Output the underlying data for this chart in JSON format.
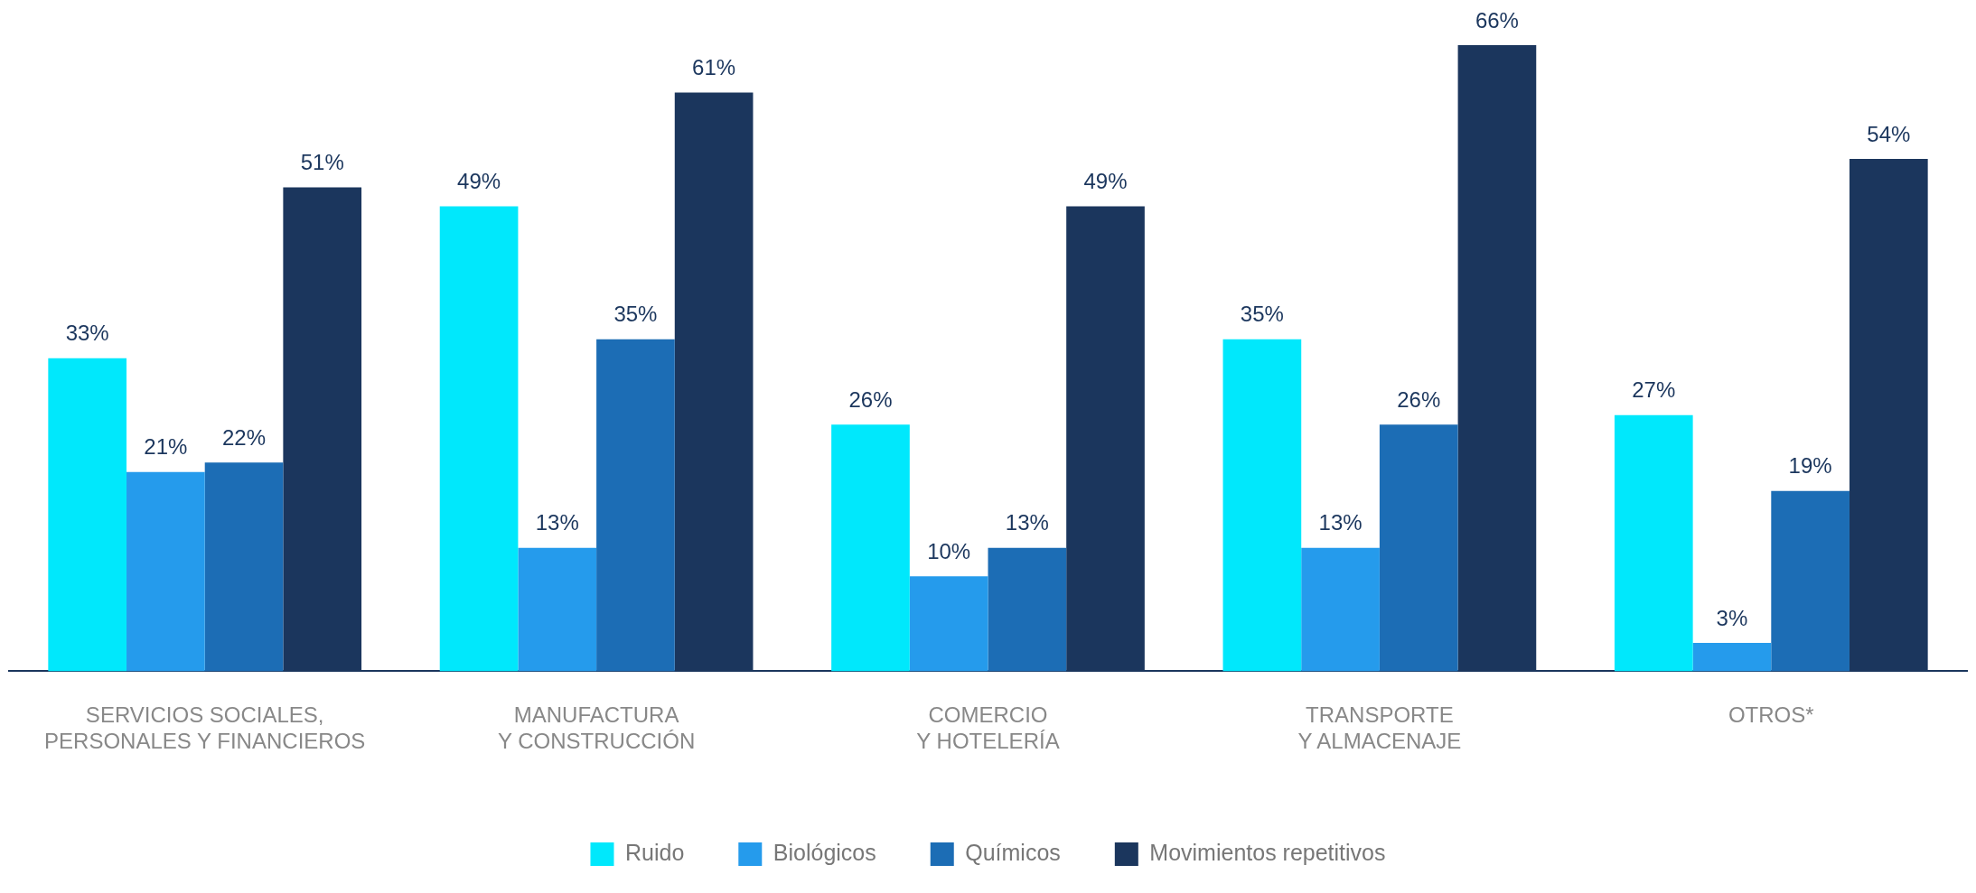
{
  "chart_data": {
    "type": "bar",
    "categories": [
      "SERVICIOS SOCIALES,\nPERSONALES Y FINANCIEROS",
      "MANUFACTURA\nY CONSTRUCCIÓN",
      "COMERCIO\nY HOTELERÍA",
      "TRANSPORTE\nY ALMACENAJE",
      "OTROS*"
    ],
    "series": [
      {
        "name": "Ruido",
        "color": "#00e8fc",
        "values": [
          33,
          49,
          26,
          35,
          27
        ],
        "value_labels": [
          "33%",
          "49%",
          "26%",
          "35%",
          "27%"
        ]
      },
      {
        "name": "Biológicos",
        "color": "#259bec",
        "values": [
          21,
          13,
          10,
          13,
          3
        ],
        "value_labels": [
          "21%",
          "13%",
          "10%",
          "13%",
          "3%"
        ]
      },
      {
        "name": "Químicos",
        "color": "#1c6db5",
        "values": [
          22,
          35,
          13,
          26,
          19
        ],
        "value_labels": [
          "22%",
          "35%",
          "13%",
          "26%",
          "19%"
        ]
      },
      {
        "name": "Movimientos repetitivos",
        "color": "#1b365d",
        "values": [
          51,
          61,
          49,
          66,
          54
        ],
        "value_labels": [
          "51%",
          "61%",
          "49%",
          "66%",
          "54%"
        ]
      }
    ],
    "legend": "bottom",
    "grid": false,
    "tick_labels": "x"
  }
}
